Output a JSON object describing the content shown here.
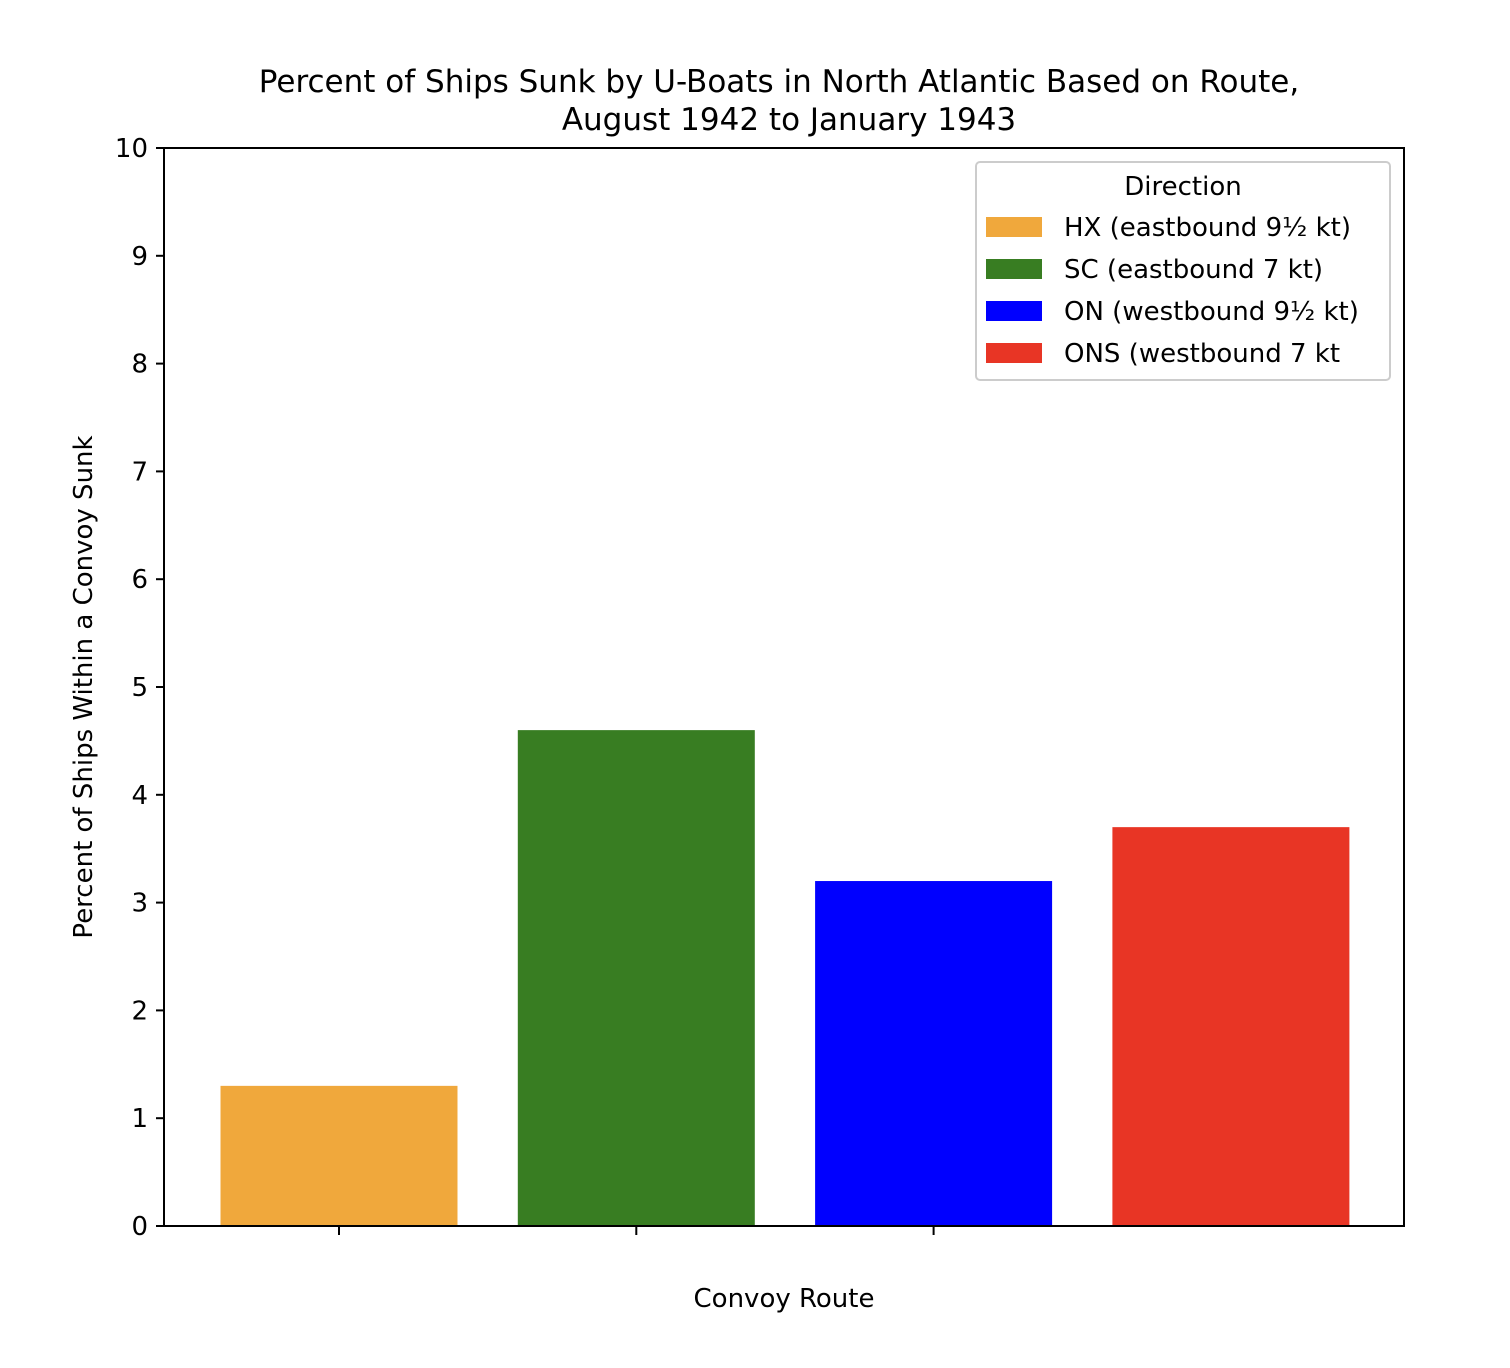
{
  "chart_data": {
    "type": "bar",
    "title_line1": "Percent of Ships Sunk by U-Boats in North Atlantic Based on Route,",
    "title_line2": "August 1942 to January 1943",
    "xlabel": "Convoy Route",
    "ylabel": "Percent of Ships Within a Convoy Sunk",
    "ylim": [
      0,
      10
    ],
    "yticks": [
      "0",
      "1",
      "2",
      "3",
      "4",
      "5",
      "6",
      "7",
      "8",
      "9",
      "10"
    ],
    "grid": false,
    "legend": {
      "title": "Direction",
      "position": "top-right"
    },
    "series": [
      {
        "name": "HX (eastbound 9½ kt)",
        "value": 1.3,
        "color": "#F0A83C"
      },
      {
        "name": "SC (eastbound 7 kt)",
        "value": 4.6,
        "color": "#387D22"
      },
      {
        "name": "ON (westbound 9½ kt)",
        "value": 3.2,
        "color": "#0000FF"
      },
      {
        "name": "ONS (westbound 7 kt",
        "value": 3.7,
        "color": "#E83525"
      }
    ]
  }
}
